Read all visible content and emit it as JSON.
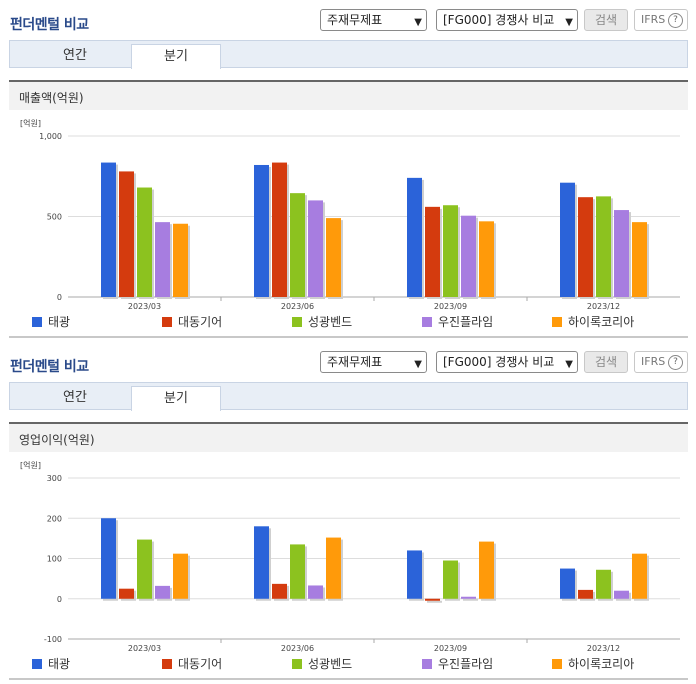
{
  "colors": {
    "title": "#2a4a8a",
    "series": [
      "#2b63d9",
      "#d43b0e",
      "#8cc21f",
      "#a77de0",
      "#ff9a0a"
    ],
    "grid": "#dddddd",
    "axis": "#555555"
  },
  "series_names": [
    "태광",
    "대동기어",
    "성광벤드",
    "우진플라임",
    "하이록코리아"
  ],
  "sections": [
    {
      "title": "펀더멘털 비교",
      "select_statement": "주재무제표",
      "select_compare": "[FG000] 경쟁사 비교",
      "search_label": "검색",
      "ifrs_label": "IFRS",
      "help_icon": "question-circle-icon",
      "tabs": [
        "연간",
        "분기"
      ],
      "active_tab": "분기",
      "panel_title": "매출액(억원)",
      "unit_label": "[억원]",
      "chart_data": {
        "type": "bar",
        "title": "매출액(억원)",
        "categories": [
          "2023/03",
          "2023/06",
          "2023/09",
          "2023/12"
        ],
        "ylim": [
          0,
          1000
        ],
        "yticks": [
          0,
          500,
          1000
        ],
        "ytick_labels": [
          "0",
          "500",
          "1,000"
        ],
        "grid": true,
        "legend": "bottom",
        "series": [
          {
            "name": "태광",
            "values": [
              835,
              820,
              740,
              710
            ]
          },
          {
            "name": "대동기어",
            "values": [
              780,
              835,
              560,
              620
            ]
          },
          {
            "name": "성광벤드",
            "values": [
              680,
              645,
              570,
              625
            ]
          },
          {
            "name": "우진플라임",
            "values": [
              465,
              600,
              505,
              540
            ]
          },
          {
            "name": "하이록코리아",
            "values": [
              455,
              490,
              470,
              465
            ]
          }
        ]
      }
    },
    {
      "title": "펀더멘털 비교",
      "select_statement": "주재무제표",
      "select_compare": "[FG000] 경쟁사 비교",
      "search_label": "검색",
      "ifrs_label": "IFRS",
      "help_icon": "question-circle-icon",
      "tabs": [
        "연간",
        "분기"
      ],
      "active_tab": "분기",
      "panel_title": "영업이익(억원)",
      "unit_label": "[억원]",
      "chart_data": {
        "type": "bar",
        "title": "영업이익(억원)",
        "categories": [
          "2023/03",
          "2023/06",
          "2023/09",
          "2023/12"
        ],
        "ylim": [
          -100,
          300
        ],
        "yticks": [
          -100,
          0,
          100,
          200,
          300
        ],
        "ytick_labels": [
          "-100",
          "0",
          "100",
          "200",
          "300"
        ],
        "grid": true,
        "legend": "bottom",
        "series": [
          {
            "name": "태광",
            "values": [
              200,
              180,
              120,
              75
            ]
          },
          {
            "name": "대동기어",
            "values": [
              25,
              37,
              -5,
              22
            ]
          },
          {
            "name": "성광벤드",
            "values": [
              147,
              135,
              95,
              72
            ]
          },
          {
            "name": "우진플라임",
            "values": [
              32,
              33,
              5,
              20
            ]
          },
          {
            "name": "하이록코리아",
            "values": [
              112,
              152,
              142,
              112
            ]
          }
        ]
      }
    }
  ]
}
